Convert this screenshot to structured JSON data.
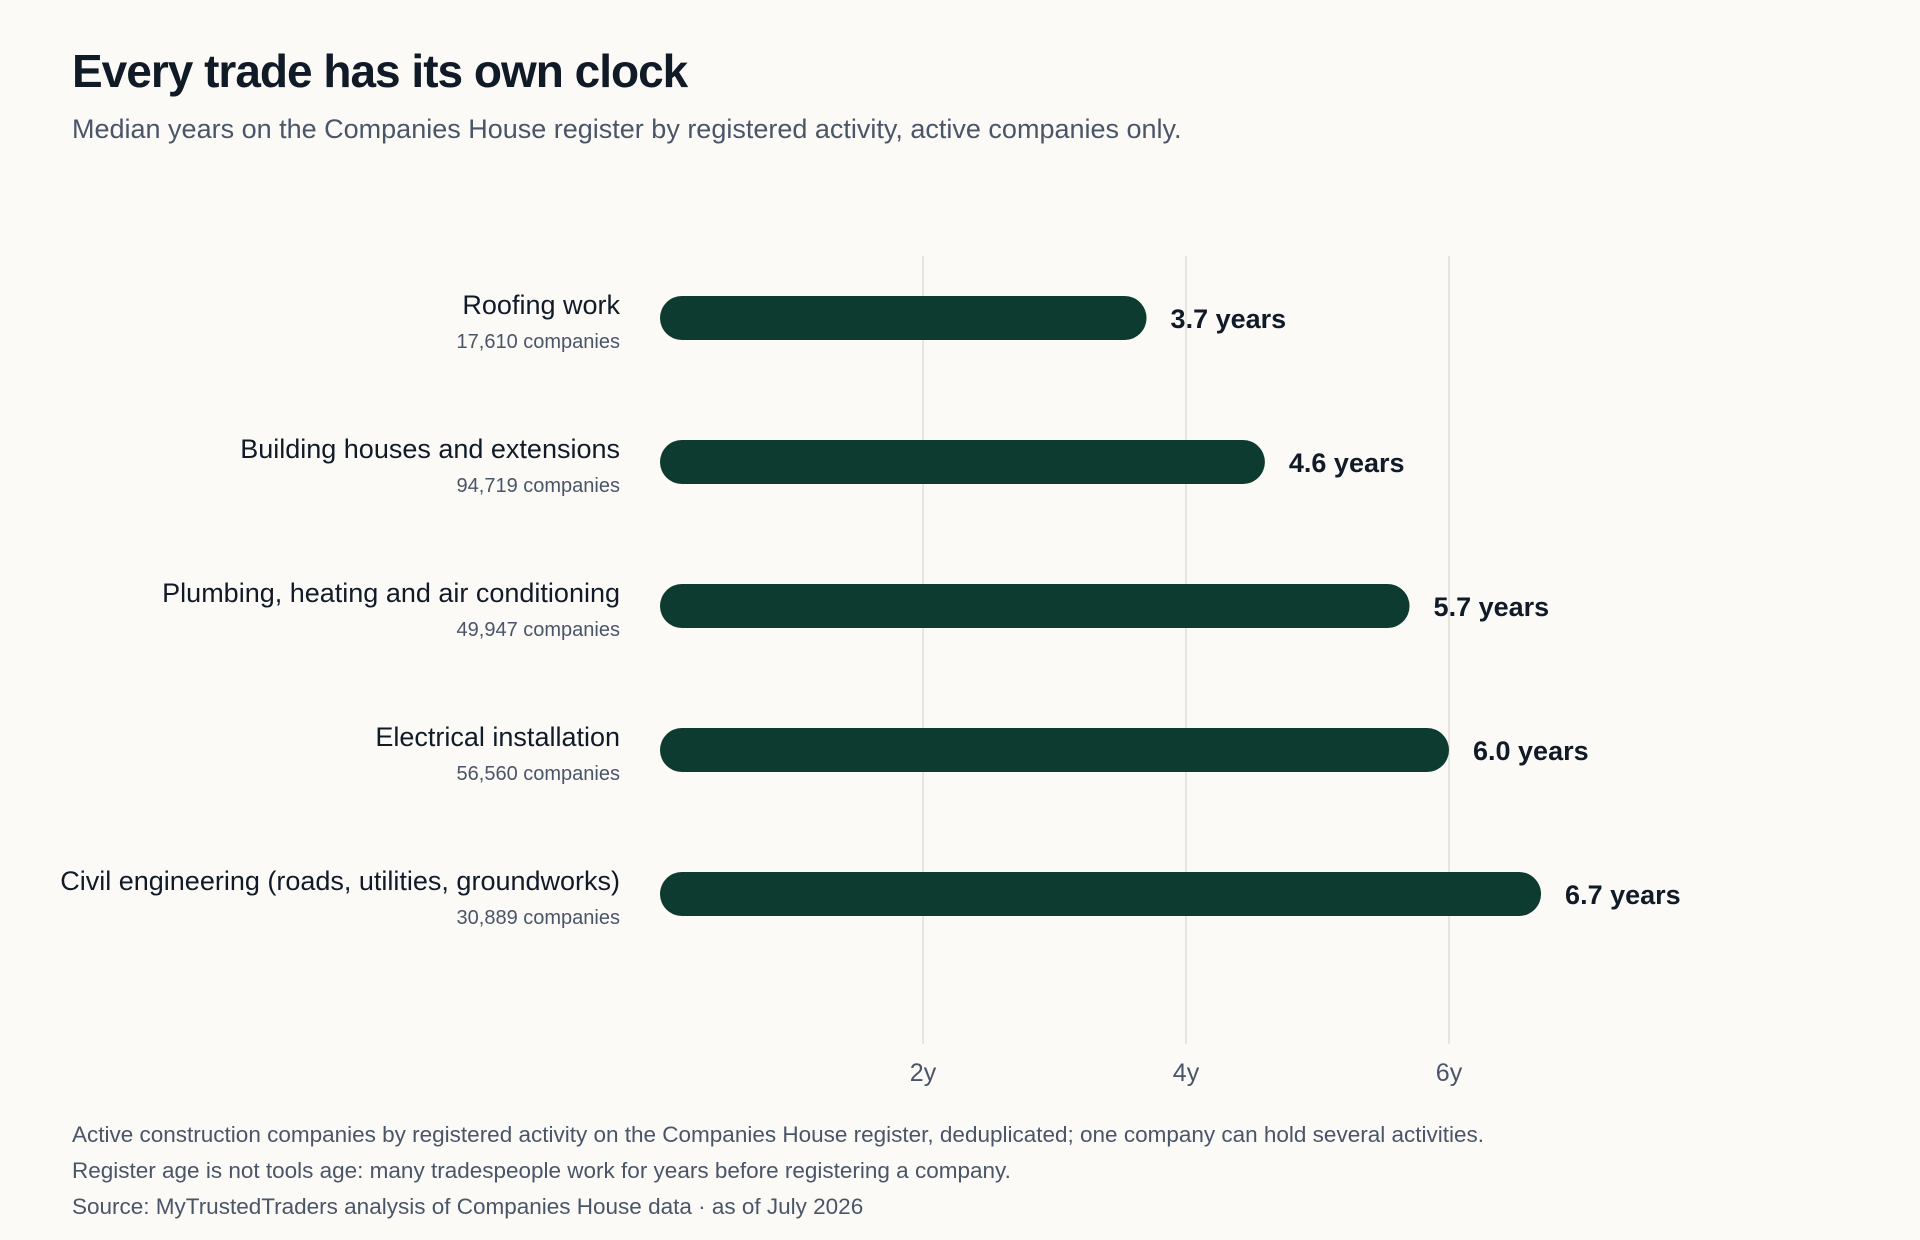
{
  "header": {
    "title": "Every trade has its own clock",
    "subtitle": "Median years on the Companies House register by registered activity, active companies only."
  },
  "colors": {
    "bar": "#0d3b30",
    "gridline": "#e6e5e1",
    "label": "#111a27",
    "muted": "#4a5568",
    "background": "#fbfaf7"
  },
  "chart_data": {
    "type": "bar",
    "orientation": "horizontal",
    "categories": [
      "Roofing work",
      "Building houses and extensions",
      "Plumbing, heating and air conditioning",
      "Electrical installation",
      "Civil engineering (roads, utilities, groundworks)"
    ],
    "category_counts": [
      "17,610 companies",
      "94,719 companies",
      "49,947 companies",
      "56,560 companies",
      "30,889 companies"
    ],
    "values": [
      3.7,
      4.6,
      5.7,
      6.0,
      6.7
    ],
    "value_labels": [
      "3.7 years",
      "4.6 years",
      "5.7 years",
      "6.0 years",
      "6.7 years"
    ],
    "xlim": [
      0,
      8
    ],
    "xticks": [
      2,
      4,
      6
    ],
    "xtick_labels": [
      "2y",
      "4y",
      "6y"
    ],
    "grid": true,
    "xlabel": "",
    "ylabel": ""
  },
  "footnotes": [
    "Active construction companies by registered activity on the Companies House register, deduplicated; one company can hold several activities.",
    "Register age is not tools age: many tradespeople work for years before registering a company.",
    "Source: MyTrustedTraders analysis of Companies House data  ·  as of July 2026"
  ]
}
